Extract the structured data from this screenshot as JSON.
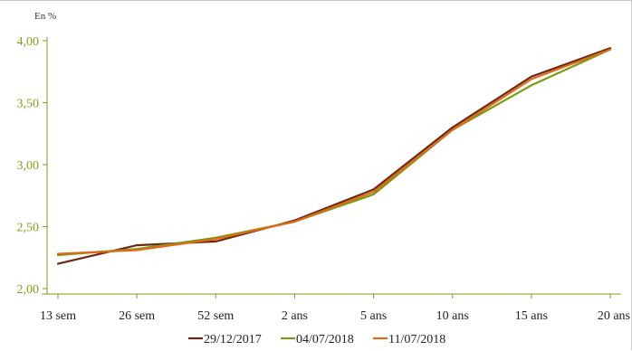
{
  "chart_data": {
    "type": "line",
    "unit_label": "En %",
    "categories": [
      "13 sem",
      "26 sem",
      "52 sem",
      "2 ans",
      "5 ans",
      "10 ans",
      "15 ans",
      "20 ans"
    ],
    "ylim": [
      2.0,
      4.0
    ],
    "yticks": [
      "2,00",
      "2,50",
      "3,00",
      "3,50",
      "4,00"
    ],
    "ytick_values": [
      2.0,
      2.5,
      3.0,
      3.5,
      4.0
    ],
    "grid": false,
    "legend_position": "bottom",
    "axis_color": "#8a9a1a",
    "series": [
      {
        "name": "29/12/2017",
        "color": "#6b2a10",
        "values": [
          2.2,
          2.35,
          2.38,
          2.55,
          2.8,
          3.3,
          3.71,
          3.94
        ]
      },
      {
        "name": "04/07/2018",
        "color": "#7a9a10",
        "values": [
          2.27,
          2.32,
          2.41,
          2.54,
          2.76,
          3.28,
          3.64,
          3.93
        ]
      },
      {
        "name": "11/07/2018",
        "color": "#e06a1a",
        "values": [
          2.28,
          2.31,
          2.4,
          2.54,
          2.78,
          3.28,
          3.69,
          3.93
        ]
      }
    ]
  }
}
